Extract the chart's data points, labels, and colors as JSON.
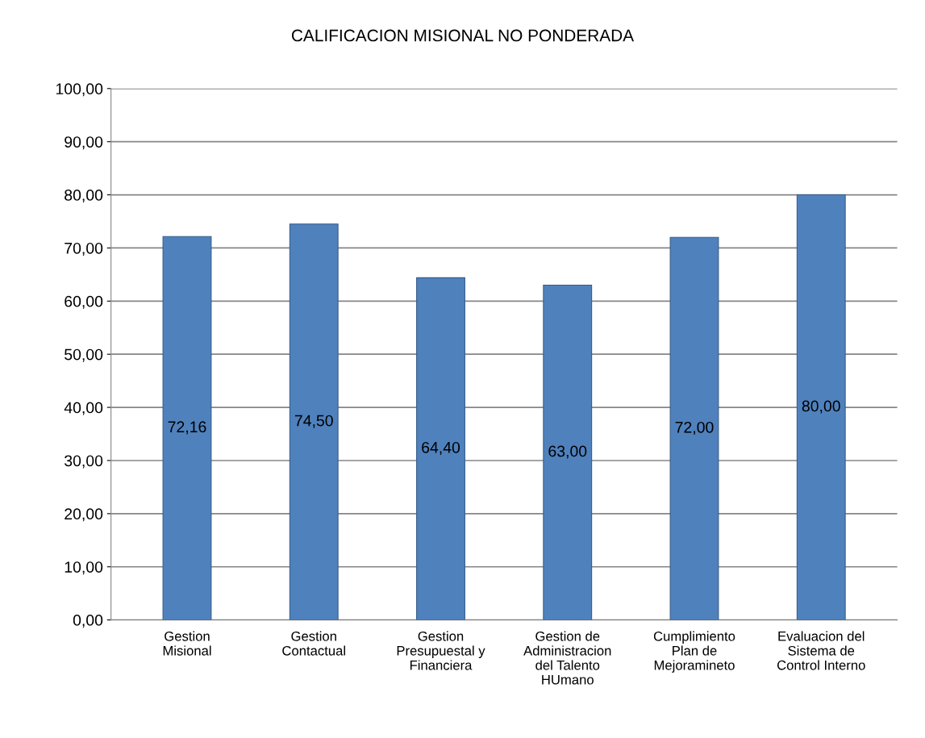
{
  "chart_data": {
    "type": "bar",
    "title": "CALIFICACION MISIONAL NO PONDERADA",
    "categories": [
      "Gestion\nMisional",
      "Gestion\nContactual",
      "Gestion\nPresupuestal y\nFinanciera",
      "Gestion de\nAdministracion\ndel Talento\nHUmano",
      "Cumplimiento\nPlan de\nMejoramineto",
      "Evaluacion del\nSistema de\nControl Interno"
    ],
    "values": [
      72.16,
      74.5,
      64.4,
      63.0,
      72.0,
      80.0
    ],
    "value_labels": [
      "72,16",
      "74,50",
      "64,40",
      "63,00",
      "72,00",
      "80,00"
    ],
    "color": "#4f81bd",
    "ylim": [
      0,
      100
    ],
    "yticks": [
      {
        "value": 0,
        "label": "0,00"
      },
      {
        "value": 10,
        "label": "10,00"
      },
      {
        "value": 20,
        "label": "20,00"
      },
      {
        "value": 30,
        "label": "30,00"
      },
      {
        "value": 40,
        "label": "40,00"
      },
      {
        "value": 50,
        "label": "50,00"
      },
      {
        "value": 60,
        "label": "60,00"
      },
      {
        "value": 70,
        "label": "70,00"
      },
      {
        "value": 80,
        "label": "80,00"
      },
      {
        "value": 90,
        "label": "90,00"
      },
      {
        "value": 100,
        "label": "100,00"
      }
    ],
    "grid": "y",
    "legend": false
  }
}
